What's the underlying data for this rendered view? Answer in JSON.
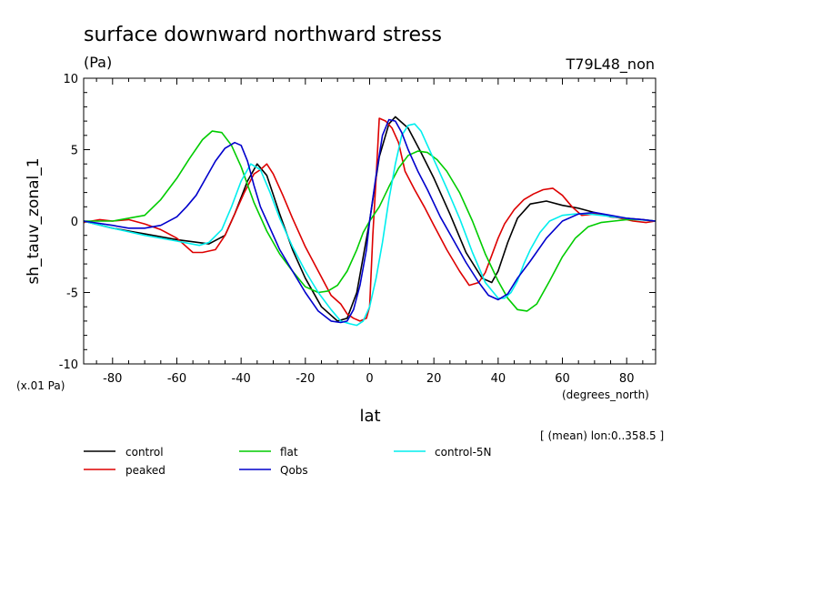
{
  "chart_data": {
    "type": "line",
    "title": "surface downward northward stress",
    "units": "(Pa)",
    "run_label": "T79L48_non",
    "ylabel": "sh_tauv_zonal_1",
    "y_scale_note": "(x.01 Pa)",
    "xlabel": "lat",
    "x_units": "(degrees_north)",
    "footnote": "[ (mean) lon:0..358.5 ]",
    "xlim": [
      -89,
      89
    ],
    "ylim": [
      -10,
      10
    ],
    "x_ticks": [
      -80,
      -60,
      -40,
      -20,
      0,
      20,
      40,
      60,
      80
    ],
    "y_ticks": [
      -10,
      -5,
      0,
      5,
      10
    ],
    "x_tick_labels": [
      "-80",
      "-60",
      "-40",
      "-20",
      "0",
      "20",
      "40",
      "60",
      "80"
    ],
    "y_tick_labels": [
      "-10",
      "-5",
      "0",
      "5",
      "10"
    ],
    "grid": false,
    "legend_position": "below",
    "series": [
      {
        "name": "control",
        "color": "#000000",
        "x": [
          -89,
          -80,
          -70,
          -60,
          -50,
          -45,
          -42,
          -38,
          -35,
          -32,
          -28,
          -24,
          -20,
          -15,
          -10,
          -7,
          -4,
          0,
          3,
          6,
          8,
          12,
          16,
          20,
          25,
          30,
          35,
          38,
          40,
          43,
          46,
          50,
          55,
          60,
          65,
          70,
          75,
          80,
          85,
          89
        ],
        "y": [
          0,
          -0.5,
          -0.9,
          -1.3,
          -1.6,
          -1,
          0.5,
          2.8,
          4,
          3.2,
          0.5,
          -2,
          -4,
          -6,
          -7,
          -6.8,
          -5,
          0,
          4.5,
          6.8,
          7.3,
          6.5,
          4.8,
          3,
          0.5,
          -2.2,
          -4,
          -4.3,
          -3.5,
          -1.5,
          0.2,
          1.2,
          1.4,
          1.1,
          0.9,
          0.6,
          0.3,
          0.2,
          0.1,
          0
        ]
      },
      {
        "name": "peaked",
        "color": "#dd0000",
        "x": [
          -89,
          -84,
          -80,
          -75,
          -70,
          -65,
          -60,
          -55,
          -52,
          -48,
          -45,
          -42,
          -39,
          -36,
          -34,
          -32,
          -30,
          -27,
          -24,
          -20,
          -16,
          -12,
          -9,
          -7,
          -5,
          -3,
          -1,
          0,
          1,
          2,
          3,
          5,
          7,
          9,
          11,
          14,
          17,
          20,
          24,
          28,
          31,
          34,
          36,
          38,
          40,
          42,
          45,
          48,
          51,
          54,
          57,
          60,
          63,
          66,
          70,
          74,
          78,
          82,
          86,
          89
        ],
        "y": [
          -0.1,
          0.1,
          0,
          0.1,
          -0.2,
          -0.6,
          -1.2,
          -2.2,
          -2.2,
          -2,
          -1,
          0.5,
          2,
          3.3,
          3.6,
          4,
          3.3,
          1.8,
          0.2,
          -1.8,
          -3.5,
          -5.2,
          -5.8,
          -6.5,
          -6.8,
          -7,
          -6.8,
          -6,
          -1,
          3,
          7.2,
          7,
          6.5,
          5.5,
          3.5,
          2.2,
          1,
          -0.3,
          -2,
          -3.5,
          -4.5,
          -4.3,
          -3.6,
          -2.4,
          -1.2,
          -0.2,
          0.8,
          1.5,
          1.9,
          2.2,
          2.3,
          1.8,
          1,
          0.4,
          0.5,
          0.4,
          0.2,
          0,
          -0.1,
          0
        ]
      },
      {
        "name": "flat",
        "color": "#00cc00",
        "x": [
          -89,
          -80,
          -70,
          -65,
          -60,
          -56,
          -52,
          -49,
          -46,
          -43,
          -40,
          -36,
          -32,
          -28,
          -24,
          -20,
          -16,
          -13,
          -10,
          -7,
          -4,
          -2,
          0,
          3,
          6,
          9,
          12,
          15,
          18,
          21,
          24,
          28,
          32,
          36,
          40,
          43,
          46,
          49,
          52,
          56,
          60,
          64,
          68,
          72,
          76,
          80,
          84,
          89
        ],
        "y": [
          0,
          0,
          0.4,
          1.5,
          3,
          4.4,
          5.7,
          6.3,
          6.2,
          5.3,
          3.8,
          1.3,
          -0.7,
          -2.3,
          -3.5,
          -4.6,
          -5,
          -4.9,
          -4.5,
          -3.5,
          -2,
          -0.8,
          0,
          1,
          2.4,
          3.7,
          4.6,
          4.9,
          4.8,
          4.3,
          3.5,
          2,
          0,
          -2.3,
          -4.2,
          -5.4,
          -6.2,
          -6.3,
          -5.8,
          -4.2,
          -2.5,
          -1.2,
          -0.4,
          -0.1,
          0,
          0.1,
          0.1,
          0
        ]
      },
      {
        "name": "control-5N",
        "color": "#00eeee",
        "x": [
          -89,
          -80,
          -70,
          -60,
          -53,
          -50,
          -46,
          -43,
          -40,
          -37,
          -34,
          -31,
          -28,
          -24,
          -20,
          -16,
          -12,
          -9,
          -6,
          -4,
          -2,
          0,
          2,
          4,
          6,
          8,
          10,
          12,
          14,
          16,
          18,
          21,
          24,
          28,
          32,
          36,
          40,
          42,
          44,
          46,
          48,
          50,
          53,
          56,
          60,
          64,
          68,
          72,
          76,
          80,
          84,
          89
        ],
        "y": [
          0,
          -0.5,
          -1,
          -1.4,
          -1.7,
          -1.5,
          -0.6,
          1,
          2.8,
          4,
          3.6,
          2,
          0.2,
          -1.8,
          -3.5,
          -5,
          -6.2,
          -7,
          -7.2,
          -7.3,
          -7,
          -6,
          -4,
          -1.5,
          1.5,
          4,
          6,
          6.7,
          6.8,
          6.3,
          5.3,
          3.8,
          2.3,
          0.2,
          -2.2,
          -4.3,
          -5.4,
          -5.4,
          -5,
          -4.2,
          -3,
          -2,
          -0.8,
          0,
          0.4,
          0.5,
          0.5,
          0.4,
          0.3,
          0.2,
          0.1,
          0
        ]
      },
      {
        "name": "Qobs",
        "color": "#0000cc",
        "x": [
          -89,
          -80,
          -75,
          -70,
          -65,
          -60,
          -57,
          -54,
          -51,
          -48,
          -45,
          -42,
          -40,
          -38,
          -36,
          -34,
          -31,
          -28,
          -24,
          -20,
          -16,
          -12,
          -9,
          -7,
          -5,
          -3,
          -1,
          0,
          2,
          4,
          6,
          8,
          10,
          12,
          15,
          18,
          22,
          26,
          30,
          34,
          37,
          40,
          43,
          46,
          50,
          55,
          60,
          65,
          70,
          75,
          80,
          85,
          89
        ],
        "y": [
          0,
          -0.3,
          -0.5,
          -0.5,
          -0.3,
          0.3,
          1,
          1.8,
          3,
          4.2,
          5.1,
          5.5,
          5.3,
          4.2,
          2.5,
          1,
          -0.5,
          -2,
          -3.5,
          -5,
          -6.3,
          -7,
          -7.1,
          -7,
          -6.2,
          -4.5,
          -2,
          0,
          3.2,
          6,
          7.1,
          7,
          6.2,
          5,
          3.5,
          2.2,
          0.3,
          -1.3,
          -2.9,
          -4.3,
          -5.2,
          -5.5,
          -5.1,
          -4,
          -2.8,
          -1.2,
          0,
          0.5,
          0.6,
          0.4,
          0.2,
          0.1,
          0
        ]
      }
    ]
  },
  "legend": [
    {
      "label": "control",
      "color": "#000000"
    },
    {
      "label": "peaked",
      "color": "#dd0000"
    },
    {
      "label": "flat",
      "color": "#00cc00"
    },
    {
      "label": "Qobs",
      "color": "#0000cc"
    },
    {
      "label": "control-5N",
      "color": "#00eeee"
    }
  ]
}
